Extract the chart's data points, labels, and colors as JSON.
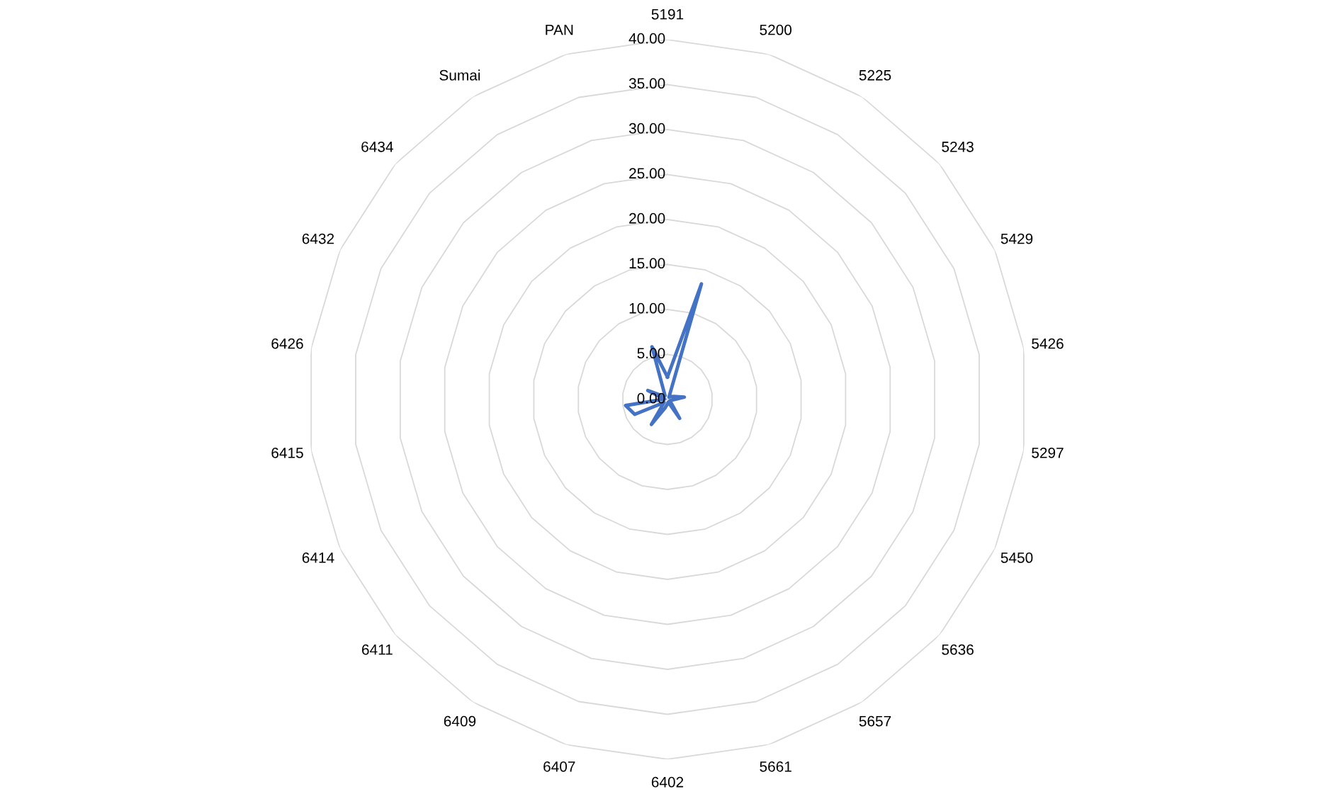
{
  "chart_data": {
    "type": "radar",
    "categories": [
      "5191",
      "5200",
      "5225",
      "5243",
      "5429",
      "5426",
      "5297",
      "5450",
      "5636",
      "5657",
      "5661",
      "6402",
      "6407",
      "6409",
      "6411",
      "6414",
      "6415",
      "6426",
      "6432",
      "6434",
      "Sumai",
      "PAN"
    ],
    "series": [
      {
        "color": "#4472c4",
        "values": [
          2.5,
          13.4,
          0.3,
          0.5,
          0.8,
          1.9,
          0.5,
          0.3,
          0.5,
          2.5,
          0.3,
          0.5,
          1.0,
          3.3,
          0.5,
          4.0,
          4.7,
          0.3,
          2.4,
          0.5,
          0.5,
          6.1
        ]
      }
    ],
    "ylim": [
      0,
      40
    ],
    "yticks": [
      {
        "value": 0,
        "label": "0.00"
      },
      {
        "value": 5,
        "label": "5.00"
      },
      {
        "value": 10,
        "label": "10.00"
      },
      {
        "value": 15,
        "label": "15.00"
      },
      {
        "value": 20,
        "label": "20.00"
      },
      {
        "value": 25,
        "label": "25.00"
      },
      {
        "value": 30,
        "label": "30.00"
      },
      {
        "value": 35,
        "label": "35.00"
      },
      {
        "value": 40,
        "label": "40.00"
      }
    ],
    "grid": true,
    "marker": "none",
    "line_style": "solid"
  }
}
